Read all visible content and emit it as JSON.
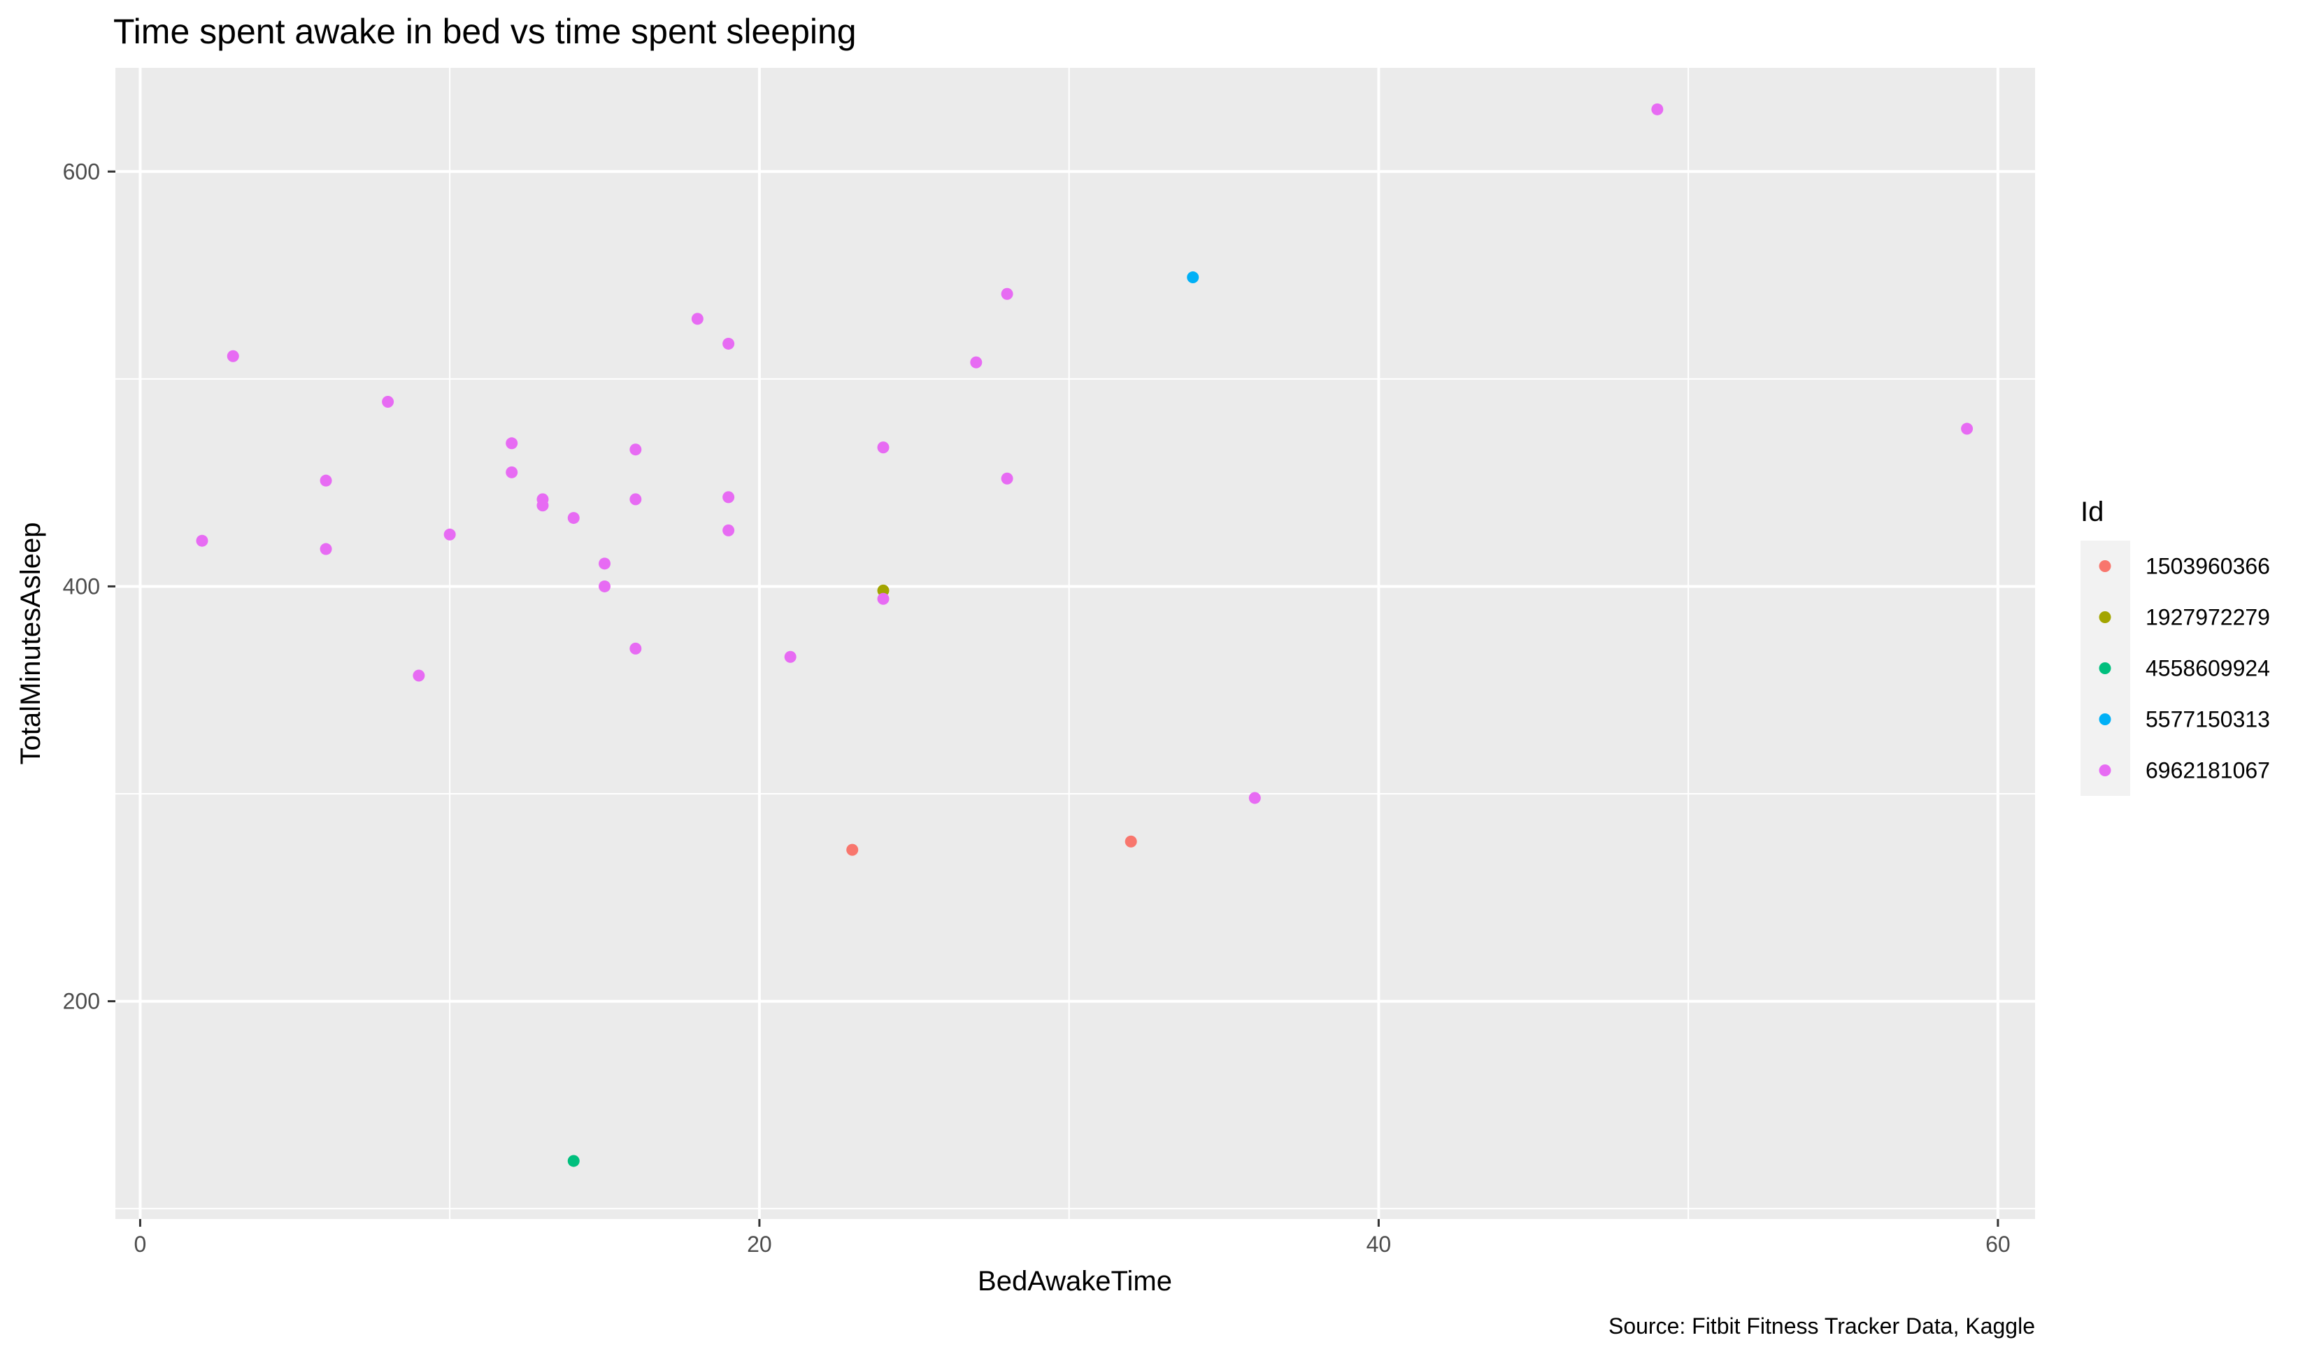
{
  "chart_data": {
    "type": "scatter",
    "title": "Time spent awake in bed vs time spent sleeping",
    "xlabel": "BedAwakeTime",
    "ylabel": "TotalMinutesAsleep",
    "caption": "Source: Fitbit Fitness Tracker Data, Kaggle",
    "xlim": [
      -0.8,
      61.2
    ],
    "ylim": [
      95,
      650
    ],
    "x_ticks": [
      0,
      20,
      40,
      60
    ],
    "y_ticks": [
      200,
      400,
      600
    ],
    "x_tick_labels": [
      "0",
      "20",
      "40",
      "60"
    ],
    "y_tick_labels": [
      "200",
      "400",
      "600"
    ],
    "grid": true,
    "legend_position": "right",
    "legend_title": "Id",
    "series": [
      {
        "name": "1503960366",
        "color": "#F8766D",
        "points": [
          [
            23,
            273
          ],
          [
            32,
            277
          ]
        ]
      },
      {
        "name": "1927972279",
        "color": "#A3A500",
        "points": [
          [
            24,
            398
          ]
        ]
      },
      {
        "name": "4558609924",
        "color": "#00BF7D",
        "points": [
          [
            14,
            123
          ]
        ]
      },
      {
        "name": "5577150313",
        "color": "#00B0F6",
        "points": [
          [
            34,
            549
          ]
        ]
      },
      {
        "name": "6962181067",
        "color": "#E76BF3",
        "points": [
          [
            2,
            422
          ],
          [
            3,
            511
          ],
          [
            6,
            451
          ],
          [
            6,
            418
          ],
          [
            8,
            489
          ],
          [
            9,
            357
          ],
          [
            10,
            425
          ],
          [
            12,
            469
          ],
          [
            12,
            455
          ],
          [
            13,
            442
          ],
          [
            13,
            439
          ],
          [
            14,
            433
          ],
          [
            15,
            411
          ],
          [
            15,
            400
          ],
          [
            16,
            466
          ],
          [
            16,
            442
          ],
          [
            16,
            370
          ],
          [
            18,
            529
          ],
          [
            19,
            517
          ],
          [
            19,
            443
          ],
          [
            19,
            427
          ],
          [
            21,
            366
          ],
          [
            24,
            467
          ],
          [
            24,
            394
          ],
          [
            27,
            508
          ],
          [
            28,
            541
          ],
          [
            28,
            452
          ],
          [
            36,
            298
          ],
          [
            49,
            630
          ],
          [
            59,
            476
          ]
        ]
      }
    ]
  }
}
